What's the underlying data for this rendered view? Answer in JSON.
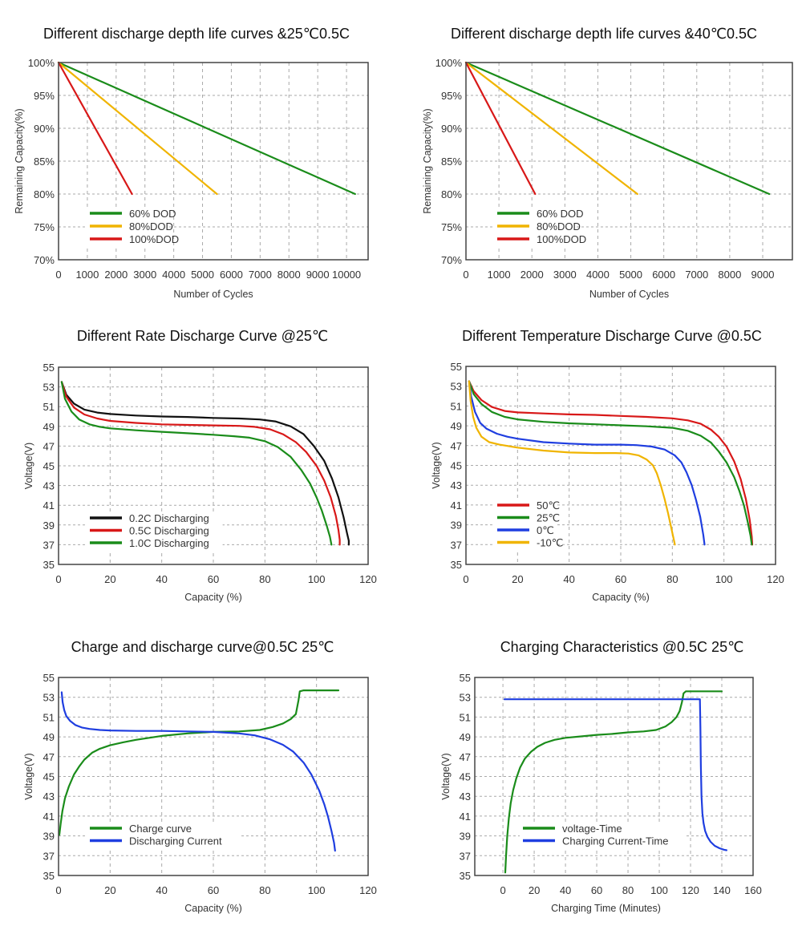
{
  "chart_data": [
    {
      "id": "dod25",
      "type": "line",
      "title": "Different discharge depth life curves &25℃0.5C",
      "xlabel": "Number of Cycles",
      "ylabel": "Remaining Capacity(%)",
      "xlim": [
        0,
        10750
      ],
      "ylim": [
        70,
        100
      ],
      "xticks": [
        0,
        1000,
        2000,
        3000,
        4000,
        5000,
        6000,
        7000,
        8000,
        9000,
        10000
      ],
      "yticks": [
        70,
        75,
        80,
        85,
        90,
        95,
        100
      ],
      "ytick_suffix": "%",
      "grid": true,
      "legend_position": "bottom-left",
      "series": [
        {
          "name": "60% DOD",
          "color": "#1a8c1a",
          "x": [
            0,
            10300
          ],
          "y": [
            100,
            80
          ]
        },
        {
          "name": "80%DOD",
          "color": "#f0b400",
          "x": [
            0,
            5500
          ],
          "y": [
            100,
            80
          ]
        },
        {
          "name": "100%DOD",
          "color": "#d81818",
          "x": [
            0,
            2550
          ],
          "y": [
            100,
            80
          ]
        }
      ]
    },
    {
      "id": "dod40",
      "type": "line",
      "title": "Different discharge depth life curves &40℃0.5C",
      "xlabel": "Number of Cycles",
      "ylabel": "Remaining Capacity(%)",
      "xlim": [
        0,
        9900
      ],
      "ylim": [
        70,
        100
      ],
      "xticks": [
        0,
        1000,
        2000,
        3000,
        4000,
        5000,
        6000,
        7000,
        8000,
        9000
      ],
      "yticks": [
        70,
        75,
        80,
        85,
        90,
        95,
        100
      ],
      "ytick_suffix": "%",
      "grid": true,
      "legend_position": "bottom-left",
      "series": [
        {
          "name": "60% DOD",
          "color": "#1a8c1a",
          "x": [
            0,
            9200
          ],
          "y": [
            100,
            80
          ]
        },
        {
          "name": "80%DOD",
          "color": "#f0b400",
          "x": [
            0,
            5200
          ],
          "y": [
            100,
            80
          ]
        },
        {
          "name": "100%DOD",
          "color": "#d81818",
          "x": [
            0,
            2100
          ],
          "y": [
            100,
            80
          ]
        }
      ]
    },
    {
      "id": "rate",
      "type": "line",
      "title": "Different Rate Discharge Curve @25℃",
      "xlabel": "Capacity (%)",
      "ylabel": "Voltage(V)",
      "xlim": [
        0,
        120
      ],
      "ylim": [
        35,
        55
      ],
      "xticks": [
        0,
        20,
        40,
        60,
        80,
        100,
        120
      ],
      "yticks": [
        35,
        37,
        39,
        41,
        43,
        45,
        47,
        49,
        51,
        53,
        55
      ],
      "ytick_suffix": "",
      "grid": true,
      "legend_position": "bottom-left",
      "series": [
        {
          "name": "0.2C Discharging",
          "color": "#111111",
          "x": [
            1.2,
            3,
            6,
            10,
            15,
            20,
            30,
            40,
            50,
            60,
            70,
            78,
            84,
            90,
            95,
            99,
            103,
            106,
            108.5,
            110.5,
            111.8,
            112.5,
            112.5
          ],
          "y": [
            53.5,
            52.2,
            51.3,
            50.7,
            50.4,
            50.25,
            50.1,
            50.0,
            49.95,
            49.85,
            49.8,
            49.7,
            49.5,
            49.0,
            48.2,
            47.0,
            45.5,
            43.7,
            41.8,
            39.8,
            38.2,
            37.4,
            37.0
          ]
        },
        {
          "name": "0.5C Discharging",
          "color": "#d81818",
          "x": [
            1.2,
            3,
            6,
            10,
            15,
            20,
            30,
            40,
            50,
            60,
            70,
            76,
            82,
            87,
            92,
            96,
            100,
            103,
            105.5,
            107.5,
            108.5,
            109,
            109
          ],
          "y": [
            53.5,
            52.0,
            50.9,
            50.2,
            49.8,
            49.55,
            49.35,
            49.2,
            49.15,
            49.1,
            49.05,
            48.95,
            48.7,
            48.2,
            47.4,
            46.4,
            45.0,
            43.5,
            41.8,
            39.9,
            38.5,
            37.5,
            37.0
          ]
        },
        {
          "name": "1.0C Discharging",
          "color": "#1a8c1a",
          "x": [
            1.2,
            2.5,
            5,
            8,
            12,
            16,
            20,
            30,
            40,
            50,
            60,
            68,
            74,
            80,
            85,
            90,
            94,
            97.5,
            100,
            102,
            104,
            105.2,
            105.8
          ],
          "y": [
            53.5,
            51.8,
            50.5,
            49.7,
            49.2,
            48.95,
            48.8,
            48.6,
            48.45,
            48.3,
            48.15,
            48.0,
            47.85,
            47.5,
            46.9,
            45.9,
            44.6,
            43.2,
            41.8,
            40.5,
            38.9,
            37.8,
            37.0
          ]
        }
      ]
    },
    {
      "id": "temp",
      "type": "line",
      "title": "Different Temperature Discharge Curve @0.5C",
      "xlabel": "Capacity (%)",
      "ylabel": "Voltage(V)",
      "xlim": [
        0,
        120
      ],
      "ylim": [
        35,
        55
      ],
      "xticks": [
        0,
        20,
        40,
        60,
        80,
        100,
        120
      ],
      "yticks": [
        35,
        37,
        39,
        41,
        43,
        45,
        47,
        49,
        51,
        53,
        55
      ],
      "ytick_suffix": "",
      "grid": true,
      "legend_position": "bottom-left",
      "series": [
        {
          "name": "50℃",
          "color": "#d81818",
          "x": [
            1.2,
            3,
            6,
            10,
            15,
            20,
            30,
            40,
            50,
            60,
            70,
            80,
            86,
            91,
            95,
            98,
            101,
            104,
            106.5,
            108.5,
            110,
            110.8,
            111
          ],
          "y": [
            53.5,
            52.5,
            51.6,
            50.9,
            50.5,
            50.35,
            50.25,
            50.15,
            50.1,
            50.0,
            49.9,
            49.75,
            49.55,
            49.2,
            48.6,
            47.9,
            46.9,
            45.4,
            43.6,
            41.6,
            39.5,
            37.8,
            37.0
          ]
        },
        {
          "name": "25℃",
          "color": "#1a8c1a",
          "x": [
            1.2,
            3,
            6,
            10,
            15,
            20,
            30,
            40,
            50,
            60,
            70,
            80,
            86,
            91,
            95,
            98,
            101,
            104,
            106,
            107.8,
            109.2,
            110.3,
            110.8
          ],
          "y": [
            53.5,
            52.2,
            51.2,
            50.4,
            49.9,
            49.65,
            49.4,
            49.25,
            49.15,
            49.05,
            48.95,
            48.8,
            48.5,
            48.0,
            47.3,
            46.4,
            45.3,
            43.8,
            42.4,
            40.9,
            39.3,
            37.9,
            37.0
          ]
        },
        {
          "name": "0℃",
          "color": "#1f3ee0",
          "x": [
            1.2,
            2,
            3.5,
            5.5,
            8,
            12,
            16,
            20,
            30,
            40,
            50,
            60,
            66,
            72,
            77,
            81,
            83.5,
            85.5,
            87.5,
            89.2,
            90.8,
            92,
            92.5
          ],
          "y": [
            53.5,
            52.0,
            50.4,
            49.3,
            48.7,
            48.2,
            47.9,
            47.7,
            47.35,
            47.2,
            47.1,
            47.1,
            47.05,
            46.9,
            46.6,
            46.0,
            45.3,
            44.3,
            43.0,
            41.5,
            39.8,
            38.0,
            37.0
          ]
        },
        {
          "name": "-10℃",
          "color": "#f0b400",
          "x": [
            1.2,
            1.8,
            2.8,
            4,
            6,
            9,
            13,
            20,
            30,
            40,
            50,
            58,
            63,
            67,
            70,
            72.5,
            74,
            75.5,
            77,
            78.3,
            79.5,
            80.5,
            81
          ],
          "y": [
            53.5,
            51.5,
            49.9,
            48.8,
            47.9,
            47.35,
            47.1,
            46.8,
            46.5,
            46.3,
            46.25,
            46.25,
            46.2,
            46.0,
            45.6,
            45.0,
            44.2,
            43.0,
            41.6,
            40.2,
            38.8,
            37.6,
            37.0
          ]
        }
      ]
    },
    {
      "id": "chgdis",
      "type": "line",
      "title": "Charge and discharge curve@0.5C 25℃",
      "xlabel": "Capacity (%)",
      "ylabel": "Voltage(V)",
      "xlim": [
        0,
        120
      ],
      "ylim": [
        35,
        55
      ],
      "xticks": [
        0,
        20,
        40,
        60,
        80,
        100,
        120
      ],
      "yticks": [
        35,
        37,
        39,
        41,
        43,
        45,
        47,
        49,
        51,
        53,
        55
      ],
      "ytick_suffix": "",
      "grid": true,
      "legend_position": "bottom-left",
      "series": [
        {
          "name": "Charge curve",
          "color": "#1a8c1a",
          "x": [
            0.3,
            0.8,
            1.5,
            2.5,
            4,
            6,
            8,
            10,
            13,
            16,
            20,
            25,
            30,
            40,
            50,
            60,
            70,
            78,
            83,
            87,
            90,
            92,
            93,
            93.5,
            95,
            100,
            108.5
          ],
          "y": [
            39.1,
            40.2,
            41.5,
            42.8,
            44.0,
            45.2,
            46.0,
            46.7,
            47.4,
            47.8,
            48.15,
            48.45,
            48.7,
            49.1,
            49.35,
            49.5,
            49.55,
            49.7,
            50.0,
            50.35,
            50.8,
            51.3,
            52.7,
            53.6,
            53.7,
            53.7,
            53.7
          ]
        },
        {
          "name": "Discharging Current",
          "color": "#1f3ee0",
          "x": [
            1.2,
            1.6,
            2.2,
            3,
            4.5,
            6.5,
            9,
            12,
            16,
            20,
            30,
            40,
            50,
            60,
            70,
            76,
            82,
            87,
            91,
            95,
            98,
            101,
            103,
            104.5,
            105.8,
            106.8,
            107.2
          ],
          "y": [
            53.5,
            52.5,
            51.7,
            51.1,
            50.6,
            50.2,
            49.95,
            49.8,
            49.7,
            49.65,
            49.6,
            49.6,
            49.55,
            49.5,
            49.35,
            49.15,
            48.75,
            48.2,
            47.5,
            46.4,
            45.2,
            43.6,
            42.2,
            40.9,
            39.5,
            38.3,
            37.5
          ]
        }
      ]
    },
    {
      "id": "charging",
      "type": "line",
      "title": "Charging Characteristics @0.5C 25℃",
      "xlabel": "Charging Time (Minutes)",
      "ylabel": "Voltage(V)",
      "xlim": [
        -18,
        160
      ],
      "ylim": [
        35,
        55
      ],
      "xticks": [
        0,
        20,
        40,
        60,
        80,
        100,
        120,
        140,
        160
      ],
      "yticks": [
        35,
        37,
        39,
        41,
        43,
        45,
        47,
        49,
        51,
        53,
        55
      ],
      "ytick_suffix": "",
      "grid": true,
      "legend_position": "bottom-left",
      "series": [
        {
          "name": "voltage-Time",
          "color": "#1a8c1a",
          "x": [
            1.5,
            2,
            2.8,
            3.8,
            5,
            6.5,
            8.5,
            11,
            14,
            18,
            22,
            27,
            33,
            40,
            50,
            60,
            70,
            80,
            90,
            98,
            104,
            108,
            111,
            113,
            114.5,
            115.5,
            117,
            125,
            140
          ],
          "y": [
            35.3,
            37.0,
            39.0,
            40.8,
            42.3,
            43.6,
            44.8,
            45.9,
            46.8,
            47.5,
            48.0,
            48.4,
            48.7,
            48.9,
            49.05,
            49.2,
            49.3,
            49.45,
            49.55,
            49.7,
            50.05,
            50.5,
            51.0,
            51.6,
            52.5,
            53.4,
            53.6,
            53.6,
            53.6
          ]
        },
        {
          "name": "Charging Current-Time",
          "color": "#1f3ee0",
          "x": [
            1,
            126,
            126.3,
            126.6,
            127,
            127.6,
            128.3,
            129.3,
            130.8,
            132.8,
            135.5,
            138.5,
            141.5,
            143
          ],
          "y": [
            52.8,
            52.8,
            50.0,
            46.0,
            43.0,
            41.3,
            40.3,
            39.5,
            38.9,
            38.4,
            38.0,
            37.75,
            37.6,
            37.55
          ]
        }
      ]
    }
  ]
}
